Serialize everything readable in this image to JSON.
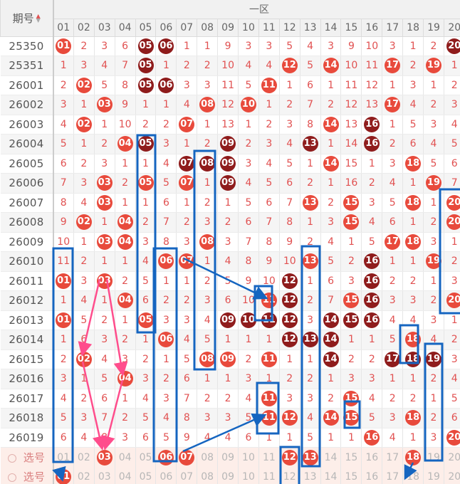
{
  "header": {
    "period_label": "期号",
    "zone_label": "一区",
    "columns": [
      "01",
      "02",
      "03",
      "04",
      "05",
      "06",
      "07",
      "08",
      "09",
      "10",
      "11",
      "12",
      "13",
      "14",
      "15",
      "16",
      "17",
      "18",
      "19",
      "20"
    ]
  },
  "rows": [
    {
      "period": "25350",
      "cells": [
        "01",
        "2",
        "3",
        "6",
        "05",
        "06",
        "1",
        "1",
        "9",
        "3",
        "3",
        "5",
        "4",
        "3",
        "9",
        "10",
        "3",
        "1",
        "2",
        "20"
      ],
      "balls": [
        0,
        4,
        5,
        19
      ],
      "dark": [
        4,
        5,
        19
      ]
    },
    {
      "period": "25351",
      "cells": [
        "1",
        "3",
        "4",
        "7",
        "05",
        "1",
        "2",
        "2",
        "10",
        "4",
        "4",
        "12",
        "5",
        "14",
        "10",
        "11",
        "17",
        "2",
        "19",
        "1"
      ],
      "balls": [
        4,
        11,
        13,
        16,
        18
      ],
      "dark": [
        4
      ]
    },
    {
      "period": "26001",
      "cells": [
        "2",
        "02",
        "5",
        "8",
        "05",
        "06",
        "3",
        "3",
        "11",
        "5",
        "11",
        "1",
        "6",
        "1",
        "11",
        "12",
        "1",
        "3",
        "1",
        "2"
      ],
      "balls": [
        1,
        4,
        5,
        10
      ],
      "dark": [
        4,
        5
      ]
    },
    {
      "period": "26002",
      "cells": [
        "3",
        "1",
        "03",
        "9",
        "1",
        "1",
        "4",
        "08",
        "12",
        "10",
        "1",
        "2",
        "7",
        "2",
        "12",
        "13",
        "17",
        "4",
        "2",
        "3"
      ],
      "balls": [
        2,
        7,
        9,
        16
      ],
      "dark": []
    },
    {
      "period": "26003",
      "cells": [
        "4",
        "02",
        "1",
        "10",
        "2",
        "2",
        "07",
        "1",
        "13",
        "1",
        "2",
        "3",
        "8",
        "14",
        "13",
        "16",
        "1",
        "5",
        "3",
        "4"
      ],
      "balls": [
        1,
        6,
        13,
        15
      ],
      "dark": [
        15
      ]
    },
    {
      "period": "26004",
      "cells": [
        "5",
        "1",
        "2",
        "04",
        "05",
        "3",
        "1",
        "2",
        "09",
        "2",
        "3",
        "4",
        "13",
        "1",
        "14",
        "16",
        "2",
        "6",
        "4",
        "5"
      ],
      "balls": [
        3,
        4,
        8,
        12,
        15
      ],
      "dark": [
        4,
        8,
        12,
        15
      ]
    },
    {
      "period": "26005",
      "cells": [
        "6",
        "2",
        "3",
        "1",
        "1",
        "4",
        "07",
        "08",
        "09",
        "3",
        "4",
        "5",
        "1",
        "14",
        "15",
        "1",
        "3",
        "18",
        "5",
        "6"
      ],
      "balls": [
        6,
        7,
        8,
        13,
        17
      ],
      "dark": [
        6,
        7,
        8
      ]
    },
    {
      "period": "26006",
      "cells": [
        "7",
        "3",
        "03",
        "2",
        "05",
        "5",
        "07",
        "1",
        "09",
        "4",
        "5",
        "6",
        "2",
        "1",
        "16",
        "2",
        "4",
        "1",
        "19",
        "7"
      ],
      "balls": [
        2,
        4,
        6,
        8,
        18
      ],
      "dark": [
        8
      ]
    },
    {
      "period": "26007",
      "cells": [
        "8",
        "4",
        "03",
        "1",
        "1",
        "6",
        "1",
        "2",
        "1",
        "5",
        "6",
        "7",
        "13",
        "2",
        "15",
        "3",
        "5",
        "18",
        "1",
        "20"
      ],
      "balls": [
        2,
        12,
        14,
        17,
        19
      ],
      "dark": []
    },
    {
      "period": "26008",
      "cells": [
        "9",
        "02",
        "1",
        "04",
        "2",
        "7",
        "2",
        "3",
        "2",
        "6",
        "7",
        "8",
        "1",
        "3",
        "15",
        "4",
        "6",
        "1",
        "2",
        "20"
      ],
      "balls": [
        1,
        3,
        14,
        19
      ],
      "dark": []
    },
    {
      "period": "26009",
      "cells": [
        "10",
        "1",
        "03",
        "04",
        "3",
        "8",
        "3",
        "08",
        "3",
        "7",
        "8",
        "9",
        "2",
        "4",
        "1",
        "5",
        "17",
        "18",
        "3",
        "1"
      ],
      "balls": [
        2,
        3,
        7,
        16,
        17
      ],
      "dark": []
    },
    {
      "period": "26010",
      "cells": [
        "11",
        "2",
        "1",
        "1",
        "4",
        "06",
        "07",
        "1",
        "4",
        "8",
        "9",
        "10",
        "13",
        "5",
        "2",
        "16",
        "1",
        "1",
        "19",
        "2"
      ],
      "balls": [
        5,
        6,
        12,
        15,
        18
      ],
      "dark": [
        15
      ]
    },
    {
      "period": "26011",
      "cells": [
        "01",
        "3",
        "03",
        "2",
        "5",
        "1",
        "1",
        "2",
        "5",
        "9",
        "10",
        "12",
        "1",
        "6",
        "3",
        "16",
        "2",
        "2",
        "1",
        "3"
      ],
      "balls": [
        0,
        2,
        11,
        15
      ],
      "dark": [
        11,
        15
      ]
    },
    {
      "period": "26012",
      "cells": [
        "1",
        "4",
        "1",
        "04",
        "6",
        "2",
        "2",
        "3",
        "6",
        "10",
        "11",
        "12",
        "2",
        "7",
        "15",
        "16",
        "3",
        "3",
        "2",
        "20"
      ],
      "balls": [
        3,
        10,
        11,
        14,
        15,
        19
      ],
      "dark": [
        11,
        15
      ]
    },
    {
      "period": "26013",
      "cells": [
        "01",
        "5",
        "2",
        "1",
        "05",
        "3",
        "3",
        "4",
        "09",
        "10",
        "11",
        "12",
        "3",
        "14",
        "15",
        "16",
        "4",
        "4",
        "3",
        "1"
      ],
      "balls": [
        0,
        4,
        8,
        9,
        10,
        11,
        13,
        14,
        15
      ],
      "dark": [
        8,
        9,
        10,
        11,
        13,
        14,
        15
      ]
    },
    {
      "period": "26014",
      "cells": [
        "1",
        "6",
        "3",
        "2",
        "1",
        "06",
        "4",
        "5",
        "1",
        "1",
        "1",
        "12",
        "13",
        "14",
        "1",
        "1",
        "5",
        "18",
        "4",
        "2"
      ],
      "balls": [
        5,
        11,
        12,
        13,
        17
      ],
      "dark": [
        11,
        12,
        13
      ]
    },
    {
      "period": "26015",
      "cells": [
        "2",
        "02",
        "4",
        "3",
        "2",
        "1",
        "5",
        "08",
        "09",
        "2",
        "11",
        "1",
        "1",
        "14",
        "2",
        "2",
        "17",
        "18",
        "19",
        "3"
      ],
      "balls": [
        1,
        7,
        8,
        10,
        13,
        16,
        17,
        18
      ],
      "dark": [
        13,
        16,
        17,
        18
      ]
    },
    {
      "period": "26016",
      "cells": [
        "3",
        "1",
        "5",
        "04",
        "3",
        "2",
        "6",
        "1",
        "1",
        "3",
        "1",
        "2",
        "2",
        "1",
        "3",
        "3",
        "1",
        "1",
        "2",
        "4"
      ],
      "balls": [
        3
      ],
      "dark": []
    },
    {
      "period": "26017",
      "cells": [
        "4",
        "2",
        "6",
        "1",
        "4",
        "3",
        "7",
        "2",
        "2",
        "4",
        "11",
        "3",
        "3",
        "2",
        "15",
        "4",
        "2",
        "2",
        "1",
        "5"
      ],
      "balls": [
        10,
        14
      ],
      "dark": []
    },
    {
      "period": "26018",
      "cells": [
        "5",
        "3",
        "7",
        "2",
        "5",
        "4",
        "8",
        "3",
        "3",
        "5",
        "11",
        "12",
        "4",
        "14",
        "15",
        "5",
        "3",
        "18",
        "2",
        "6"
      ],
      "balls": [
        10,
        11,
        13,
        14,
        17
      ],
      "dark": []
    },
    {
      "period": "26019",
      "cells": [
        "6",
        "4",
        "8",
        "3",
        "6",
        "5",
        "9",
        "4",
        "4",
        "6",
        "1",
        "1",
        "5",
        "1",
        "1",
        "16",
        "4",
        "1",
        "3",
        "20"
      ],
      "balls": [
        15,
        19
      ],
      "dark": []
    }
  ],
  "pick_rows": [
    {
      "label": "选号",
      "cells": [
        "01",
        "02",
        "03",
        "04",
        "05",
        "06",
        "07",
        "08",
        "09",
        "10",
        "11",
        "12",
        "13",
        "14",
        "15",
        "16",
        "17",
        "18",
        "19",
        "20"
      ],
      "balls": [
        2,
        5,
        6,
        11,
        12,
        17
      ]
    },
    {
      "label": "选号",
      "cells": [
        "01",
        "02",
        "03",
        "04",
        "05",
        "06",
        "07",
        "08",
        "09",
        "10",
        "11",
        "12",
        "13",
        "14",
        "15",
        "16",
        "17",
        "18",
        "19",
        "20"
      ],
      "balls": [
        0
      ]
    }
  ],
  "colors": {
    "ball": "#e84a3c",
    "ball_dark": "#8f1c1c",
    "box": "#1565c0",
    "pink": "#ff4d8c"
  }
}
